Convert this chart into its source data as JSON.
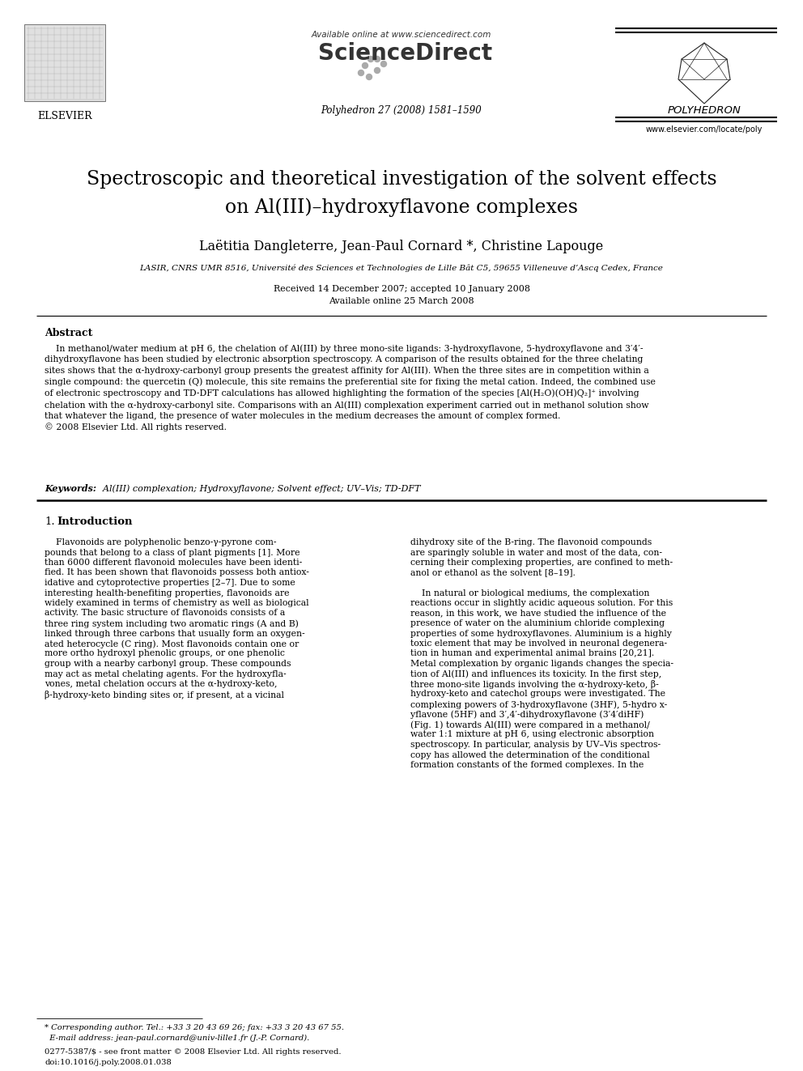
{
  "bg_color": "#ffffff",
  "available_online": "Available online at www.sciencedirect.com",
  "sciencedirect_text": "ScienceDirect",
  "journal_info": "Polyhedron 27 (2008) 1581–1590",
  "elsevier_label": "ELSEVIER",
  "polyhedron_label": "POLYHEDRON",
  "website": "www.elsevier.com/locate/poly",
  "title_line1": "Spectroscopic and theoretical investigation of the solvent effects",
  "title_line2": "on Al(III)–hydroxyflavone complexes",
  "authors": "Laëtitia Dangleterre, Jean-Paul Cornard *, Christine Lapouge",
  "affiliation": "LASIR, CNRS UMR 8516, Université des Sciences et Technologies de Lille Bât C5, 59655 Villeneuve d’Ascq Cedex, France",
  "received": "Received 14 December 2007; accepted 10 January 2008",
  "available_date": "Available online 25 March 2008",
  "abstract_title": "Abstract",
  "abstract_body": "    In methanol/water medium at pH 6, the chelation of Al(III) by three mono-site ligands: 3-hydroxyflavone, 5-hydroxyflavone and 3′4′-\ndihydroxyflavone has been studied by electronic absorption spectroscopy. A comparison of the results obtained for the three chelating\nsites shows that the α-hydroxy-carbonyl group presents the greatest affinity for Al(III). When the three sites are in competition within a\nsingle compound: the quercetin (Q) molecule, this site remains the preferential site for fixing the metal cation. Indeed, the combined use\nof electronic spectroscopy and TD-DFT calculations has allowed highlighting the formation of the species [Al(H₂O)(OH)Q₂]⁺ involving\nchelation with the α-hydroxy-carbonyl site. Comparisons with an Al(III) complexation experiment carried out in methanol solution show\nthat whatever the ligand, the presence of water molecules in the medium decreases the amount of complex formed.\n© 2008 Elsevier Ltd. All rights reserved.",
  "keywords_label": "Keywords:",
  "keywords_text": "  Al(III) complexation; Hydroxyflavone; Solvent effect; UV–Vis; TD-DFT",
  "intro_num": "1.",
  "intro_title": "Introduction",
  "col1_lines": [
    "    Flavonoids are polyphenolic benzo-γ-pyrone com-",
    "pounds that belong to a class of plant pigments [1]. More",
    "than 6000 different flavonoid molecules have been identi-",
    "fied. It has been shown that flavonoids possess both antiox-",
    "idative and cytoprotective properties [2–7]. Due to some",
    "interesting health-benefiting properties, flavonoids are",
    "widely examined in terms of chemistry as well as biological",
    "activity. The basic structure of flavonoids consists of a",
    "three ring system including two aromatic rings (A and B)",
    "linked through three carbons that usually form an oxygen-",
    "ated heterocycle (C ring). Most flavonoids contain one or",
    "more ortho hydroxyl phenolic groups, or one phenolic",
    "group with a nearby carbonyl group. These compounds",
    "may act as metal chelating agents. For the hydroxyfla-",
    "vones, metal chelation occurs at the α-hydroxy-keto,",
    "β-hydroxy-keto binding sites or, if present, at a vicinal"
  ],
  "col2_lines": [
    "dihydroxy site of the B-ring. The flavonoid compounds",
    "are sparingly soluble in water and most of the data, con-",
    "cerning their complexing properties, are confined to meth-",
    "anol or ethanol as the solvent [8–19].",
    "",
    "    In natural or biological mediums, the complexation",
    "reactions occur in slightly acidic aqueous solution. For this",
    "reason, in this work, we have studied the influence of the",
    "presence of water on the aluminium chloride complexing",
    "properties of some hydroxyflavones. Aluminium is a highly",
    "toxic element that may be involved in neuronal degenera-",
    "tion in human and experimental animal brains [20,21].",
    "Metal complexation by organic ligands changes the specia-",
    "tion of Al(III) and influences its toxicity. In the first step,",
    "three mono-site ligands involving the α-hydroxy-keto, β-",
    "hydroxy-keto and catechol groups were investigated. The",
    "complexing powers of 3-hydroxyflavone (3HF), 5-hydro x-",
    "yflavone (5HF) and 3′,4′-dihydroxyflavone (3′4′diHF)",
    "(Fig. 1) towards Al(III) were compared in a methanol/",
    "water 1:1 mixture at pH 6, using electronic absorption",
    "spectroscopy. In particular, analysis by UV–Vis spectros-",
    "copy has allowed the determination of the conditional",
    "formation constants of the formed complexes. In the"
  ],
  "footnote_line1": "* Corresponding author. Tel.: +33 3 20 43 69 26; fax: +33 3 20 43 67 55.",
  "footnote_line2": "  E-mail address: jean-paul.cornard@univ-lille1.fr (J.-P. Cornard).",
  "copyright1": "0277-5387/$ - see front matter © 2008 Elsevier Ltd. All rights reserved.",
  "copyright2": "doi:10.1016/j.poly.2008.01.038"
}
